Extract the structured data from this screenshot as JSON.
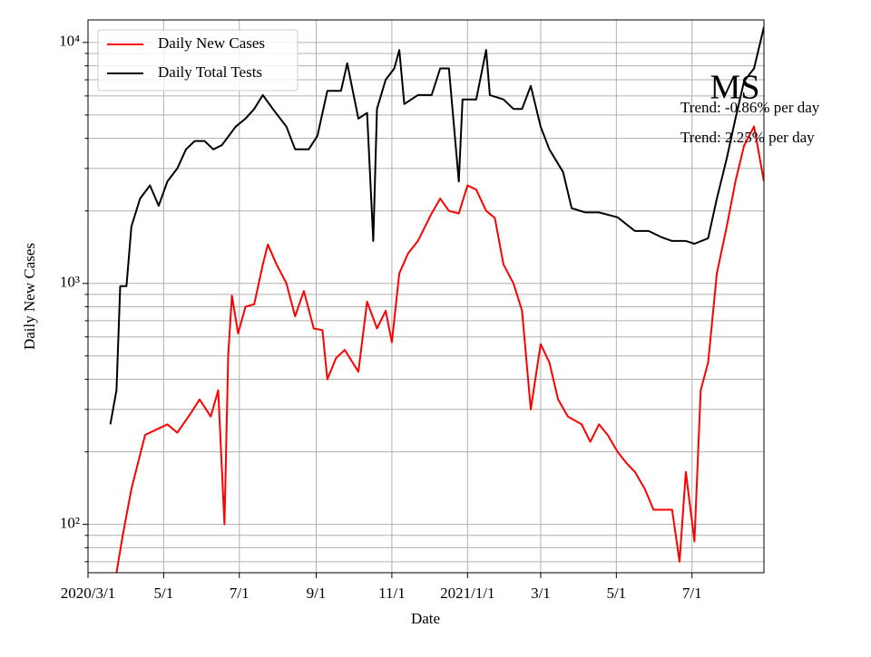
{
  "chart_data": {
    "type": "line",
    "x_label": "Date",
    "y_label": "Daily New Cases",
    "log_y": true,
    "grid": true,
    "legend": "upper left",
    "ylim": [
      63,
      12400
    ],
    "yticks": [
      {
        "value": 100,
        "label": "10²"
      },
      {
        "value": 1000,
        "label": "10³"
      },
      {
        "value": 10000,
        "label": "10⁴"
      }
    ],
    "yminor": [
      70,
      80,
      90,
      200,
      300,
      400,
      500,
      600,
      700,
      800,
      900,
      2000,
      3000,
      4000,
      5000,
      6000,
      7000,
      8000,
      9000
    ],
    "xlim": [
      "2020-03-01",
      "2021-08-28"
    ],
    "xticks": [
      {
        "value": "2020-03-01",
        "label": "2020/3/1"
      },
      {
        "value": "2020-05-01",
        "label": "5/1"
      },
      {
        "value": "2020-07-01",
        "label": "7/1"
      },
      {
        "value": "2020-09-01",
        "label": "9/1"
      },
      {
        "value": "2020-11-01",
        "label": "11/1"
      },
      {
        "value": "2021-01-01",
        "label": "2021/1/1"
      },
      {
        "value": "2021-03-01",
        "label": "3/1"
      },
      {
        "value": "2021-05-01",
        "label": "5/1"
      },
      {
        "value": "2021-07-01",
        "label": "7/1"
      }
    ],
    "annotations": [
      "MS",
      "Trend: -0.86% per day",
      "Trend: 2.25% per day"
    ],
    "series": [
      {
        "name": "Daily New Cases",
        "color": "#ff0000",
        "x": [
          "2020-03-24",
          "2020-03-29",
          "2020-04-05",
          "2020-04-16",
          "2020-04-27",
          "2020-05-04",
          "2020-05-12",
          "2020-05-23",
          "2020-05-30",
          "2020-06-08",
          "2020-06-14",
          "2020-06-19",
          "2020-06-22",
          "2020-06-25",
          "2020-06-30",
          "2020-07-06",
          "2020-07-13",
          "2020-07-20",
          "2020-07-24",
          "2020-07-31",
          "2020-08-08",
          "2020-08-15",
          "2020-08-22",
          "2020-08-30",
          "2020-09-06",
          "2020-09-10",
          "2020-09-17",
          "2020-09-24",
          "2020-10-05",
          "2020-10-12",
          "2020-10-20",
          "2020-10-27",
          "2020-11-01",
          "2020-11-07",
          "2020-11-14",
          "2020-11-22",
          "2020-12-03",
          "2020-12-10",
          "2020-12-17",
          "2020-12-25",
          "2021-01-01",
          "2021-01-08",
          "2021-01-16",
          "2021-01-23",
          "2021-01-30",
          "2021-02-07",
          "2021-02-14",
          "2021-02-21",
          "2021-03-01",
          "2021-03-08",
          "2021-03-15",
          "2021-03-23",
          "2021-04-03",
          "2021-04-10",
          "2021-04-17",
          "2021-04-24",
          "2021-05-02",
          "2021-05-09",
          "2021-05-16",
          "2021-05-24",
          "2021-05-31",
          "2021-06-07",
          "2021-06-15",
          "2021-06-21",
          "2021-06-26",
          "2021-07-03",
          "2021-07-08",
          "2021-07-14",
          "2021-07-21",
          "2021-07-29",
          "2021-08-05",
          "2021-08-12",
          "2021-08-20",
          "2021-08-28"
        ],
        "values": [
          63,
          90,
          140,
          235,
          250,
          260,
          240,
          290,
          330,
          280,
          360,
          100,
          500,
          890,
          620,
          800,
          820,
          1200,
          1450,
          1200,
          1000,
          730,
          930,
          650,
          640,
          400,
          490,
          530,
          430,
          840,
          650,
          770,
          570,
          1100,
          1330,
          1500,
          1950,
          2250,
          2000,
          1950,
          2550,
          2450,
          2000,
          1870,
          1200,
          1000,
          770,
          300,
          560,
          470,
          330,
          280,
          260,
          220,
          260,
          235,
          200,
          180,
          165,
          140,
          115,
          115,
          115,
          70,
          165,
          85,
          360,
          470,
          1100,
          1720,
          2650,
          3730,
          4480,
          2650
        ]
      },
      {
        "name": "Daily Total Tests",
        "color": "#000000",
        "x": [
          "2020-03-19",
          "2020-03-24",
          "2020-03-27",
          "2020-04-01",
          "2020-04-05",
          "2020-04-12",
          "2020-04-20",
          "2020-04-27",
          "2020-05-04",
          "2020-05-12",
          "2020-05-19",
          "2020-05-26",
          "2020-06-03",
          "2020-06-10",
          "2020-06-17",
          "2020-06-28",
          "2020-07-06",
          "2020-07-13",
          "2020-07-20",
          "2020-07-28",
          "2020-08-08",
          "2020-08-15",
          "2020-08-26",
          "2020-09-02",
          "2020-09-10",
          "2020-09-21",
          "2020-09-26",
          "2020-10-05",
          "2020-10-12",
          "2020-10-17",
          "2020-10-20",
          "2020-10-27",
          "2020-11-03",
          "2020-11-07",
          "2020-11-11",
          "2020-11-22",
          "2020-12-03",
          "2020-12-10",
          "2020-12-17",
          "2020-12-25",
          "2020-12-28",
          "2021-01-08",
          "2021-01-16",
          "2021-01-19",
          "2021-01-30",
          "2021-02-07",
          "2021-02-14",
          "2021-02-21",
          "2021-03-01",
          "2021-03-08",
          "2021-03-19",
          "2021-03-26",
          "2021-04-06",
          "2021-04-17",
          "2021-05-02",
          "2021-05-16",
          "2021-05-27",
          "2021-06-07",
          "2021-06-15",
          "2021-06-26",
          "2021-07-03",
          "2021-07-14",
          "2021-07-21",
          "2021-07-29",
          "2021-08-05",
          "2021-08-12",
          "2021-08-20",
          "2021-08-28"
        ],
        "values": [
          260,
          360,
          975,
          975,
          1720,
          2250,
          2550,
          2100,
          2650,
          3000,
          3600,
          3900,
          3900,
          3600,
          3750,
          4470,
          4830,
          5300,
          6050,
          5300,
          4470,
          3600,
          3600,
          4100,
          6300,
          6300,
          8200,
          4830,
          5100,
          1500,
          5300,
          7000,
          7800,
          9300,
          5550,
          6050,
          6050,
          7800,
          7800,
          2650,
          5800,
          5800,
          9300,
          6050,
          5800,
          5300,
          5300,
          6600,
          4470,
          3600,
          2900,
          2050,
          1970,
          1970,
          1880,
          1650,
          1650,
          1550,
          1500,
          1500,
          1460,
          1540,
          2250,
          3300,
          4830,
          6900,
          7800,
          11600
        ]
      }
    ]
  }
}
